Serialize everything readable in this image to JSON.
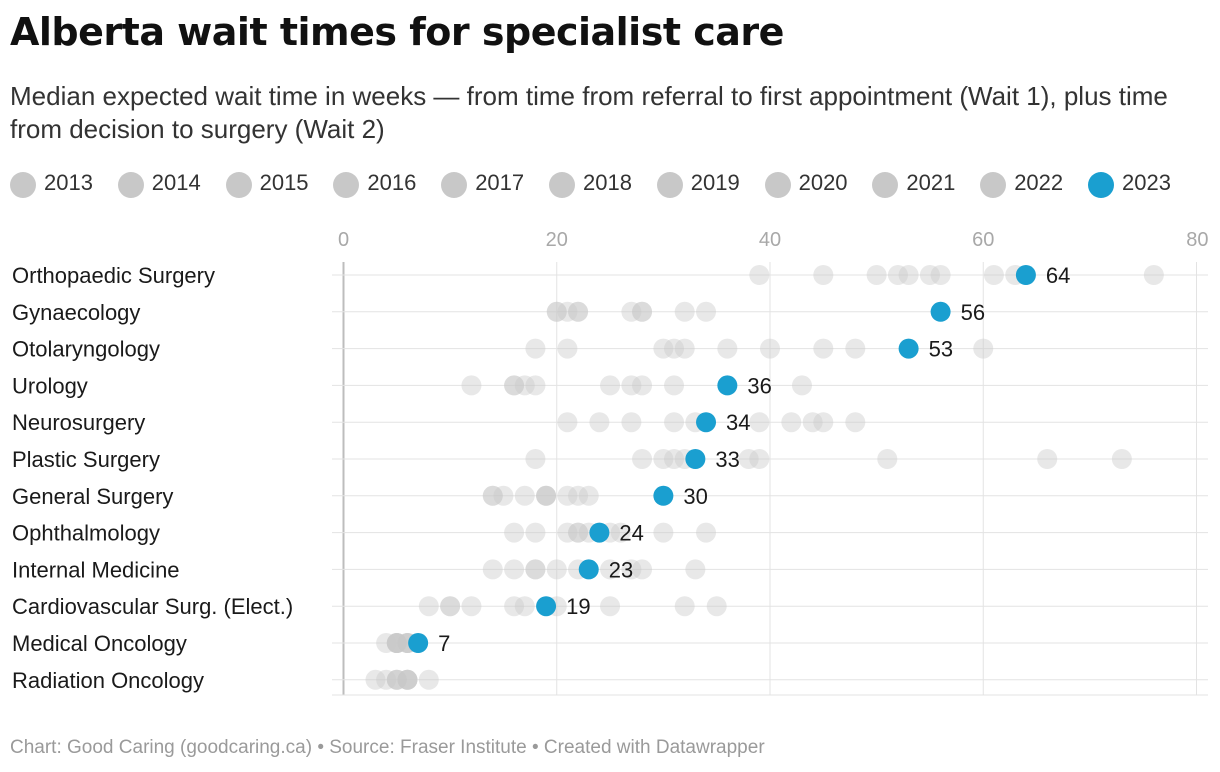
{
  "title": "Alberta wait times for specialist care",
  "subtitle": "Median expected wait time in weeks — from time from referral to first appointment (Wait 1), plus time from decision to surgery (Wait 2)",
  "footer": "Chart: Good Caring (goodcaring.ca) • Source: Fraser Institute • Created with Datawrapper",
  "colors": {
    "past_year": "#c8c8c8",
    "current_year": "#1a9fd0",
    "grid": "#e3e3e3",
    "zero_line": "#bdbdbd"
  },
  "chart_data": {
    "type": "dot",
    "title": "Alberta wait times for specialist care",
    "subtitle": "Median expected wait time in weeks — from time from referral to first appointment (Wait 1), plus time from decision to surgery (Wait 2)",
    "xlim": [
      0,
      80
    ],
    "x_ticks": [
      0,
      20,
      40,
      60,
      80
    ],
    "grid": true,
    "legend_position": "top",
    "highlight_series": "2023",
    "legend": [
      "2013",
      "2014",
      "2015",
      "2016",
      "2017",
      "2018",
      "2019",
      "2020",
      "2021",
      "2022",
      "2023"
    ],
    "categories": [
      "Orthopaedic Surgery",
      "Gynaecology",
      "Otolaryngology",
      "Urology",
      "Neurosurgery",
      "Plastic Surgery",
      "General Surgery",
      "Ophthalmology",
      "Internal Medicine",
      "Cardiovascular Surg. (Elect.)",
      "Medical Oncology",
      "Radiation Oncology"
    ],
    "values_2023": [
      64,
      56,
      53,
      36,
      34,
      33,
      30,
      24,
      23,
      19,
      7,
      null
    ],
    "value_labels": [
      "64",
      "56",
      "53",
      "36",
      "34",
      "33",
      "30",
      "24",
      "23",
      "19",
      "7",
      ""
    ],
    "prior_years": [
      [
        39,
        45,
        50,
        52,
        53,
        55,
        56,
        61,
        63,
        76
      ],
      [
        20,
        21,
        22,
        27,
        28,
        32,
        34,
        20,
        22,
        28
      ],
      [
        18,
        21,
        30,
        31,
        32,
        36,
        40,
        45,
        48,
        60
      ],
      [
        12,
        16,
        17,
        18,
        25,
        27,
        28,
        31,
        43,
        16
      ],
      [
        21,
        24,
        27,
        31,
        33,
        39,
        42,
        44,
        45,
        48
      ],
      [
        18,
        28,
        30,
        31,
        32,
        38,
        39,
        51,
        66,
        73
      ],
      [
        14,
        15,
        17,
        19,
        21,
        22,
        23,
        14,
        19,
        19
      ],
      [
        16,
        18,
        21,
        22,
        23,
        25,
        26,
        30,
        34,
        22
      ],
      [
        14,
        16,
        18,
        20,
        22,
        25,
        27,
        28,
        33,
        18
      ],
      [
        8,
        10,
        12,
        16,
        17,
        20,
        25,
        32,
        35,
        10
      ],
      [
        4,
        5,
        6,
        5,
        6,
        5,
        6,
        5,
        5,
        6
      ],
      [
        3,
        4,
        5,
        6,
        8,
        5,
        6,
        6,
        5,
        6
      ]
    ]
  }
}
